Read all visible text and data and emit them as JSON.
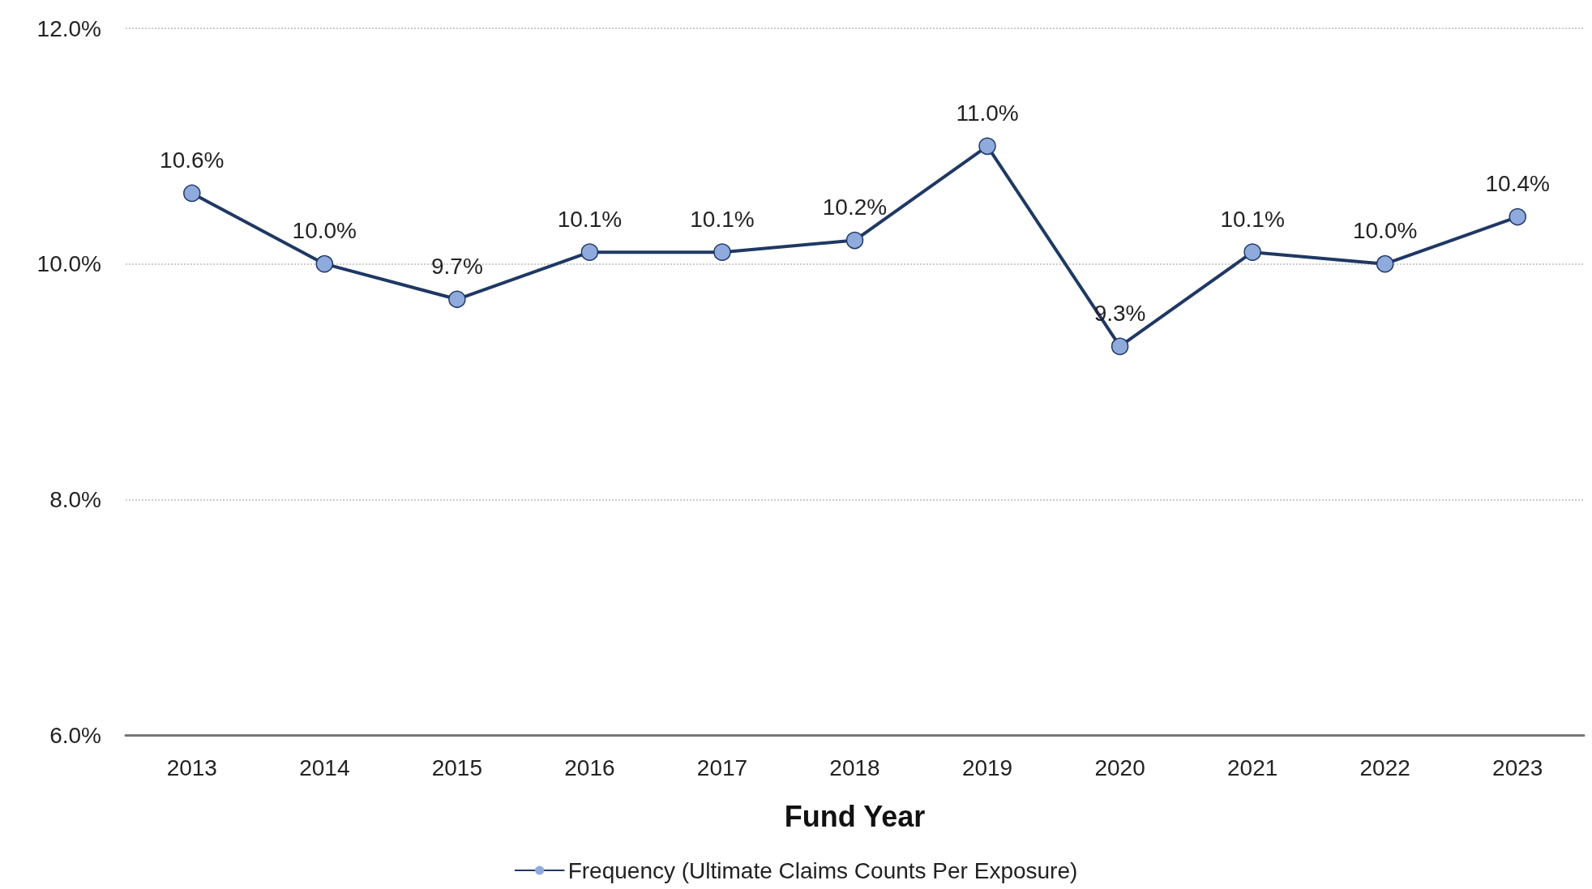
{
  "chart_data": {
    "type": "line",
    "xlabel": "Fund Year",
    "categories": [
      "2013",
      "2014",
      "2015",
      "2016",
      "2017",
      "2018",
      "2019",
      "2020",
      "2021",
      "2022",
      "2023"
    ],
    "series": [
      {
        "name": "Frequency (Ultimate Claims Counts Per Exposure)",
        "color": "#1f3864",
        "colors": [
          "#8faadc",
          "#8faadc",
          "#8faadc",
          "#8faadc",
          "#8faadc",
          "#8faadc",
          "#8faadc",
          "#8faadc",
          "#8faadc",
          "#8faadc",
          "#8faadc"
        ],
        "values": [
          10.6,
          10.0,
          9.7,
          10.1,
          10.1,
          10.2,
          11.0,
          9.3,
          10.1,
          10.0,
          10.4
        ],
        "value_labels": [
          "10.6%",
          "10.0%",
          "9.7%",
          "10.1%",
          "10.1%",
          "10.2%",
          "11.0%",
          "9.3%",
          "10.1%",
          "10.0%",
          "10.4%"
        ]
      }
    ],
    "ylim": [
      6,
      12
    ],
    "yticks": [
      {
        "value": 6,
        "label": "6.0%"
      },
      {
        "value": 8,
        "label": "8.0%"
      },
      {
        "value": 10,
        "label": "10.0%"
      },
      {
        "value": 12,
        "label": "12.0%"
      }
    ],
    "grid": "y",
    "legend": "bottom",
    "marker": "circle",
    "line_style": "solid"
  }
}
